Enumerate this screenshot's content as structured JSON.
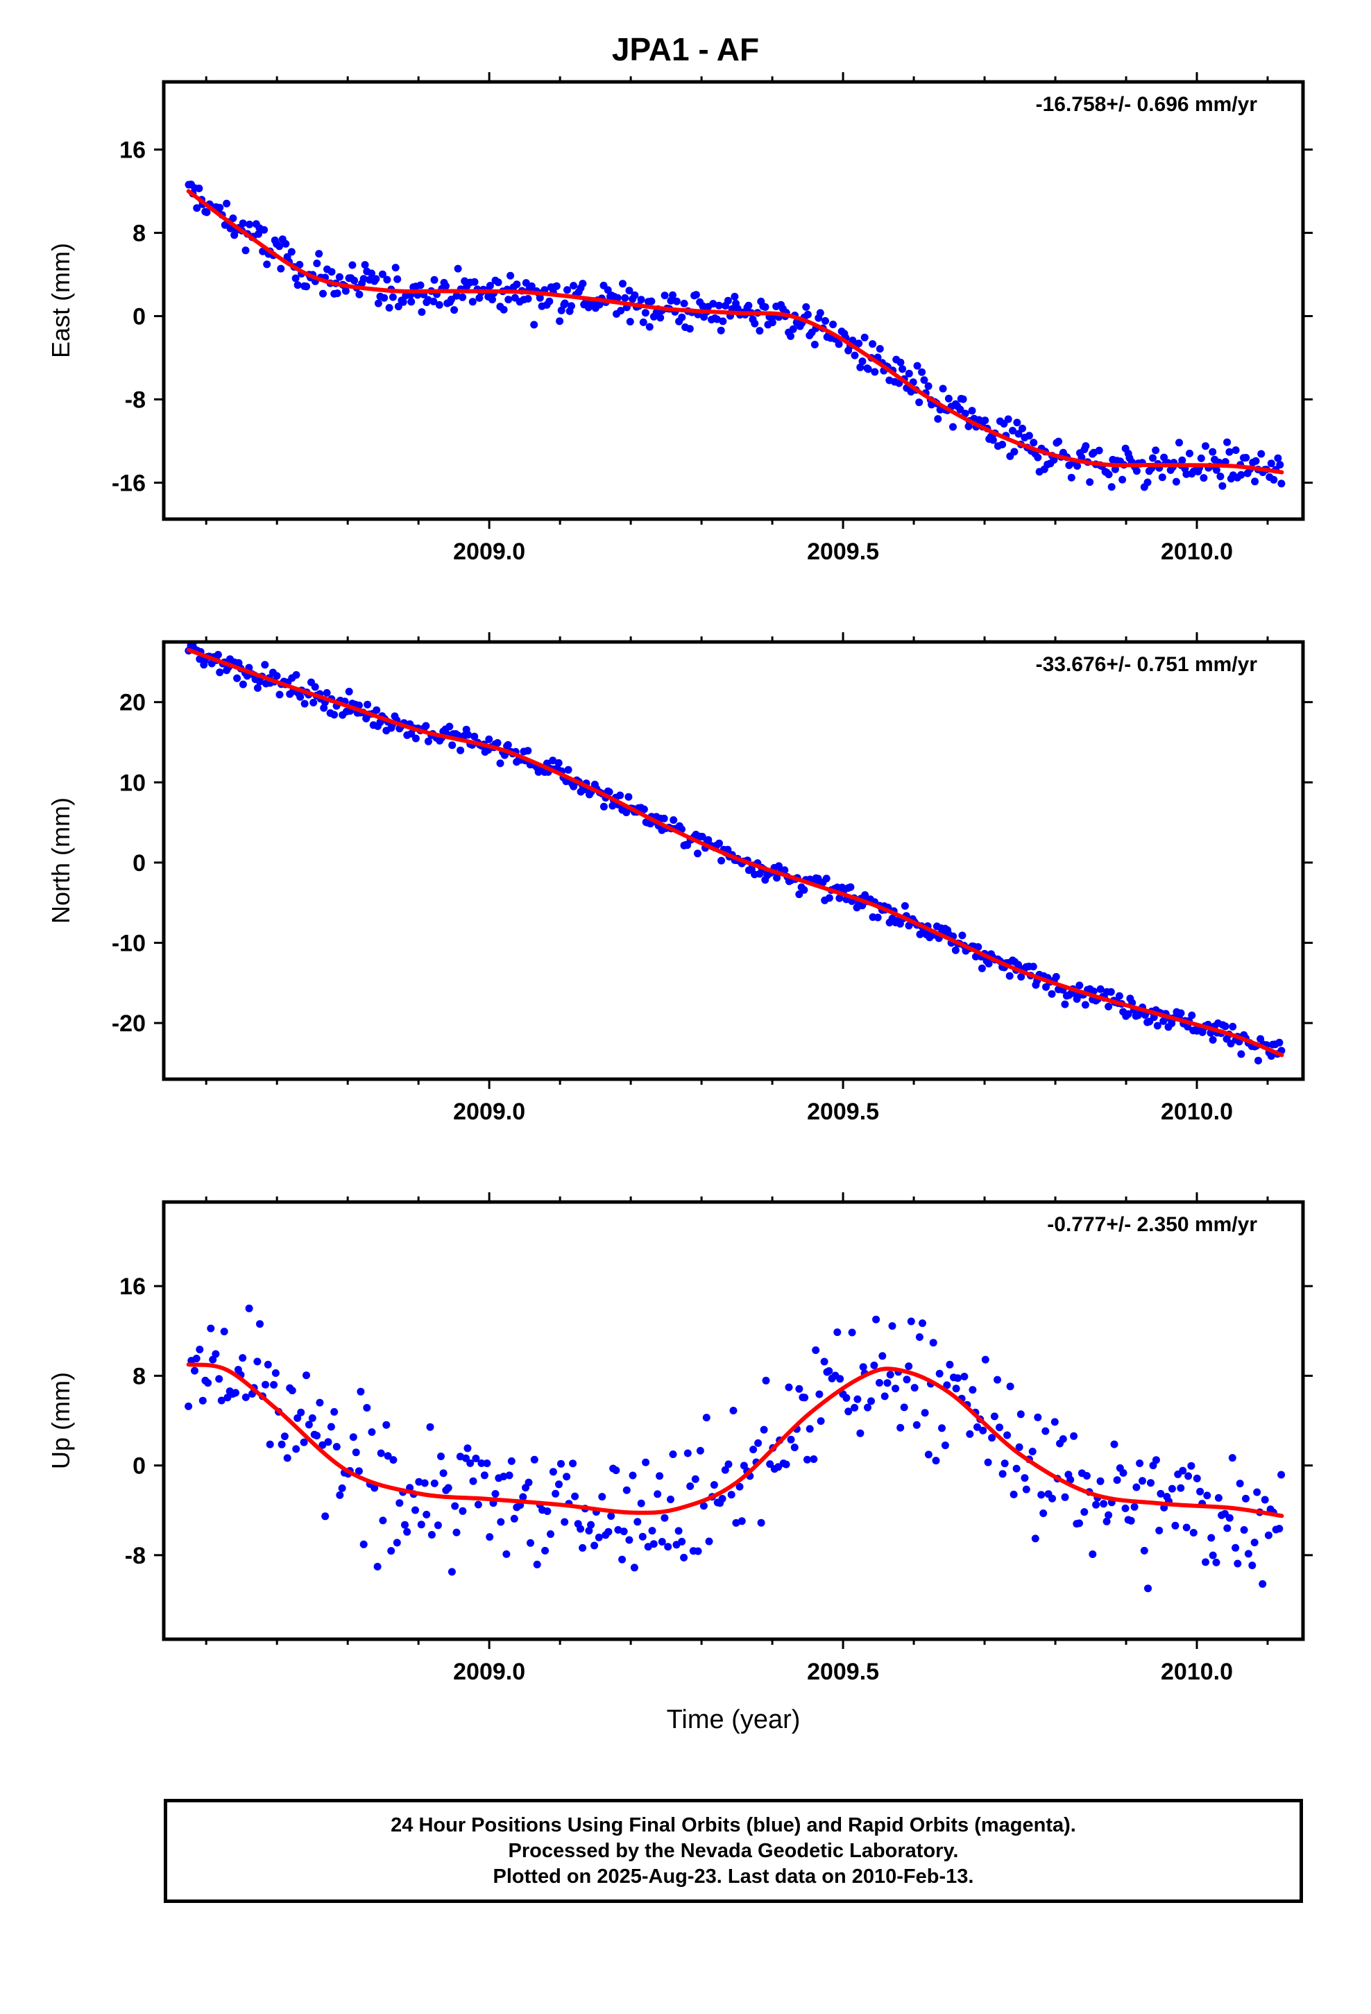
{
  "title": "JPA1 - AF",
  "footer": {
    "line1": "24 Hour Positions Using Final Orbits (blue) and Rapid Orbits (magenta).",
    "line2": "Processed by the Nevada Geodetic Laboratory.",
    "line3": "Plotted on 2025-Aug-23. Last data on 2010-Feb-13."
  },
  "colors": {
    "points": "#0000ff",
    "fit": "#ff0000",
    "axes": "#000000"
  },
  "chart_data": [
    {
      "type": "scatter",
      "ylabel": "East (mm)",
      "xlabel": "",
      "rate": "-16.758+/- 0.696 mm/yr",
      "xlim": [
        2008.54,
        2010.15
      ],
      "ylim": [
        -19.5,
        22.5
      ],
      "xticks": [
        "2009.0",
        "2009.5",
        "2010.0"
      ],
      "xtick_values": [
        2009.0,
        2009.5,
        2010.0
      ],
      "yticks": [
        "16",
        "8",
        "0",
        "-8",
        "-16"
      ],
      "ytick_values": [
        16,
        8,
        0,
        -8,
        -16
      ],
      "fit": {
        "x": [
          2008.575,
          2008.65,
          2008.75,
          2008.85,
          2008.95,
          2009.05,
          2009.15,
          2009.25,
          2009.35,
          2009.42,
          2009.48,
          2009.55,
          2009.62,
          2009.7,
          2009.78,
          2009.86,
          2009.95,
          2010.05,
          2010.12
        ],
        "y": [
          12,
          8.2,
          3.8,
          2.5,
          2.4,
          2.3,
          1.6,
          0.7,
          0.3,
          0.1,
          -1.5,
          -4.5,
          -7.8,
          -10.8,
          -13,
          -14.2,
          -14.3,
          -14.4,
          -15
        ]
      },
      "points": {
        "x_start": 2008.575,
        "x_end": 2010.12,
        "count": 520,
        "noise_mm": 1.4
      }
    },
    {
      "type": "scatter",
      "ylabel": "North (mm)",
      "xlabel": "",
      "rate": "-33.676+/- 0.751 mm/yr",
      "xlim": [
        2008.54,
        2010.15
      ],
      "ylim": [
        -27,
        27.5
      ],
      "xticks": [
        "2009.0",
        "2009.5",
        "2010.0"
      ],
      "xtick_values": [
        2009.0,
        2009.5,
        2010.0
      ],
      "yticks": [
        "20",
        "10",
        "0",
        "-10",
        "-20"
      ],
      "ytick_values": [
        20,
        10,
        0,
        -10,
        -20
      ],
      "fit": {
        "x": [
          2008.575,
          2008.7,
          2008.8,
          2008.9,
          2009.0,
          2009.05,
          2009.15,
          2009.25,
          2009.35,
          2009.45,
          2009.55,
          2009.65,
          2009.75,
          2009.85,
          2009.95,
          2010.05,
          2010.12
        ],
        "y": [
          26.5,
          22.5,
          19.5,
          16.5,
          14.5,
          13,
          9,
          4.5,
          0.5,
          -2.5,
          -5.5,
          -9.5,
          -13.5,
          -16.5,
          -19,
          -21.5,
          -24
        ]
      },
      "points": {
        "x_start": 2008.575,
        "x_end": 2010.12,
        "count": 520,
        "noise_mm": 1.0
      }
    },
    {
      "type": "scatter",
      "ylabel": "Up (mm)",
      "xlabel": "Time (year)",
      "rate": "-0.777+/- 2.350 mm/yr",
      "xlim": [
        2008.54,
        2010.15
      ],
      "ylim": [
        -15.5,
        23.5
      ],
      "xticks": [
        "2009.0",
        "2009.5",
        "2010.0"
      ],
      "xtick_values": [
        2009.0,
        2009.5,
        2010.0
      ],
      "yticks": [
        "16",
        "8",
        "0",
        "-8"
      ],
      "ytick_values": [
        16,
        8,
        0,
        -8
      ],
      "fit": {
        "x": [
          2008.575,
          2008.63,
          2008.7,
          2008.8,
          2008.9,
          2009.0,
          2009.1,
          2009.2,
          2009.27,
          2009.35,
          2009.45,
          2009.53,
          2009.58,
          2009.65,
          2009.75,
          2009.85,
          2009.95,
          2010.05,
          2010.12
        ],
        "y": [
          9,
          8.5,
          5,
          -0.5,
          -2.5,
          -3,
          -3.5,
          -4.2,
          -3.8,
          -1.5,
          4.5,
          8,
          8.5,
          6.5,
          1,
          -2.5,
          -3.4,
          -3.8,
          -4.5
        ]
      },
      "points": {
        "x_start": 2008.575,
        "x_end": 2010.12,
        "count": 400,
        "noise_mm": 4.2
      }
    }
  ]
}
